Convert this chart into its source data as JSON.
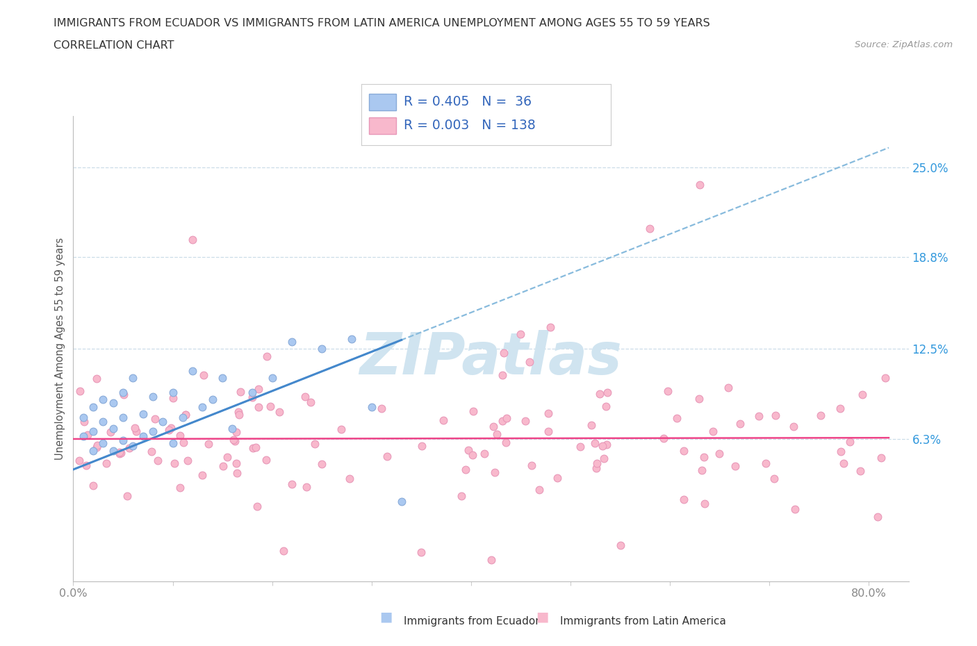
{
  "title_line1": "IMMIGRANTS FROM ECUADOR VS IMMIGRANTS FROM LATIN AMERICA UNEMPLOYMENT AMONG AGES 55 TO 59 YEARS",
  "title_line2": "CORRELATION CHART",
  "source_text": "Source: ZipAtlas.com",
  "ylabel": "Unemployment Among Ages 55 to 59 years",
  "y_tick_values": [
    6.3,
    12.5,
    18.8,
    25.0
  ],
  "y_tick_labels": [
    "6.3%",
    "12.5%",
    "18.8%",
    "25.0%"
  ],
  "xlim": [
    0.0,
    84.0
  ],
  "ylim": [
    -3.5,
    28.5
  ],
  "ecuador_fill_color": "#aac8f0",
  "ecuador_edge_color": "#88aad8",
  "latam_fill_color": "#f8b8cc",
  "latam_edge_color": "#e898b8",
  "ecuador_R": 0.405,
  "ecuador_N": 36,
  "latam_R": 0.003,
  "latam_N": 138,
  "reg_ecuador_solid_color": "#4488cc",
  "reg_ecuador_dash_color": "#88bbdd",
  "reg_latam_color": "#ee4488",
  "watermark_color": "#d0e4f0",
  "legend_color": "#3366bb",
  "tick_label_color": "#3399dd",
  "axis_label_color": "#555555",
  "title_color": "#333333",
  "source_color": "#999999",
  "grid_color": "#ccdde8",
  "bottom_label_color": "#333333",
  "xlabel_ecuador": "Immigrants from Ecuador",
  "xlabel_latam": "Immigrants from Latin America",
  "marker_size": 60
}
